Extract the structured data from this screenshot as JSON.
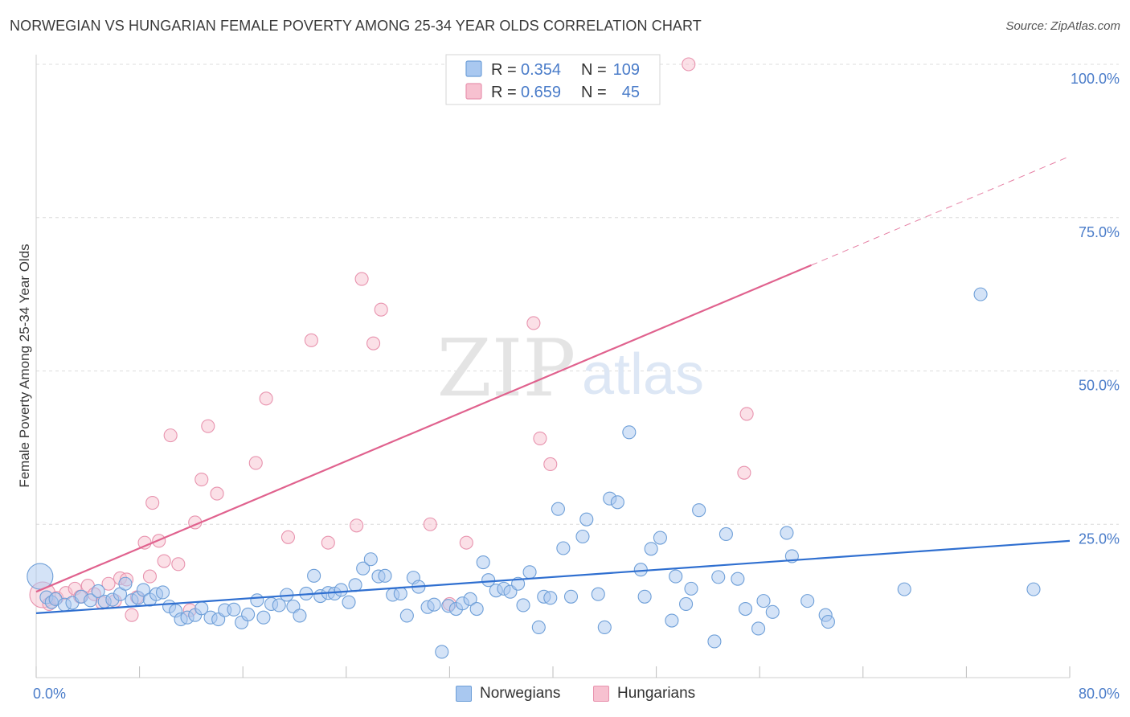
{
  "title": "NORWEGIAN VS HUNGARIAN FEMALE POVERTY AMONG 25-34 YEAR OLDS CORRELATION CHART",
  "source": "Source: ZipAtlas.com",
  "watermark": {
    "zip": "ZIP",
    "atlas": "atlas"
  },
  "colors": {
    "blue_fill": "#a9c8f0",
    "blue_stroke": "#6e9fd8",
    "blue_line": "#2f6fd0",
    "pink_fill": "#f7c1d0",
    "pink_stroke": "#e893ae",
    "pink_line": "#e0628e",
    "tick_text": "#4a7cc9",
    "grid": "#dcdcdc"
  },
  "legend": {
    "rows": [
      {
        "r_label": "R = ",
        "r_value": "0.354",
        "n_label": "N = ",
        "n_value": "109",
        "series": "blue"
      },
      {
        "r_label": "R = ",
        "r_value": "0.659",
        "n_label": "N = ",
        "n_value": "45",
        "series": "pink"
      }
    ]
  },
  "bottom_legend": [
    {
      "label": "Norwegians",
      "series": "blue"
    },
    {
      "label": "Hungarians",
      "series": "pink"
    }
  ],
  "chart_data": {
    "type": "scatter",
    "title": "NORWEGIAN VS HUNGARIAN FEMALE POVERTY AMONG 25-34 YEAR OLDS CORRELATION CHART",
    "xlabel": "",
    "ylabel": "Female Poverty Among 25-34 Year Olds",
    "xlim": [
      0,
      80
    ],
    "ylim": [
      0,
      100
    ],
    "x_tick_labels": [
      "0.0%",
      "80.0%"
    ],
    "y_tick_values": [
      25,
      50,
      75,
      100
    ],
    "y_tick_labels": [
      "25.0%",
      "50.0%",
      "75.0%",
      "100.0%"
    ],
    "grid": true,
    "legend_position": "top-center",
    "series": [
      {
        "name": "Norwegians",
        "color": "#a9c8f0",
        "trend": {
          "x": [
            0,
            80
          ],
          "y": [
            10.5,
            22.3
          ],
          "dashed_from": null
        },
        "points": [
          [
            0.3,
            16.5,
            "big"
          ],
          [
            0.8,
            13.1
          ],
          [
            1.2,
            12.3
          ],
          [
            1.5,
            12.8
          ],
          [
            2.2,
            11.9
          ],
          [
            2.8,
            12.2
          ],
          [
            3.5,
            13.2
          ],
          [
            4.2,
            12.6
          ],
          [
            4.8,
            14.1
          ],
          [
            5.3,
            12.4
          ],
          [
            5.9,
            12.7
          ],
          [
            6.5,
            13.6
          ],
          [
            6.9,
            15.3
          ],
          [
            7.4,
            12.6
          ],
          [
            7.9,
            13.0
          ],
          [
            8.3,
            14.3
          ],
          [
            8.8,
            12.7
          ],
          [
            9.3,
            13.6
          ],
          [
            9.8,
            13.9
          ],
          [
            10.3,
            11.6
          ],
          [
            10.8,
            10.9
          ],
          [
            11.2,
            9.5
          ],
          [
            11.7,
            9.8
          ],
          [
            12.3,
            10.2
          ],
          [
            12.8,
            11.3
          ],
          [
            13.5,
            9.8
          ],
          [
            14.1,
            9.5
          ],
          [
            14.6,
            11.0
          ],
          [
            15.3,
            11.1
          ],
          [
            15.9,
            9.0
          ],
          [
            16.4,
            10.3
          ],
          [
            17.1,
            12.6
          ],
          [
            17.6,
            9.8
          ],
          [
            18.2,
            12.0
          ],
          [
            18.8,
            11.8
          ],
          [
            19.4,
            13.5
          ],
          [
            19.9,
            11.6
          ],
          [
            20.4,
            10.1
          ],
          [
            20.9,
            13.7
          ],
          [
            21.5,
            16.6
          ],
          [
            22.0,
            13.3
          ],
          [
            22.6,
            13.8
          ],
          [
            23.1,
            13.7
          ],
          [
            23.6,
            14.3
          ],
          [
            24.2,
            12.3
          ],
          [
            24.7,
            15.1
          ],
          [
            25.3,
            17.8
          ],
          [
            25.9,
            19.3
          ],
          [
            26.5,
            16.5
          ],
          [
            27.0,
            16.6
          ],
          [
            27.6,
            13.5
          ],
          [
            28.2,
            13.7
          ],
          [
            28.7,
            10.1
          ],
          [
            29.2,
            16.3
          ],
          [
            29.6,
            14.8
          ],
          [
            30.3,
            11.5
          ],
          [
            30.8,
            11.9
          ],
          [
            31.4,
            4.2
          ],
          [
            31.9,
            11.7
          ],
          [
            32.5,
            11.2
          ],
          [
            33.0,
            12.1
          ],
          [
            33.6,
            12.8
          ],
          [
            34.1,
            11.2
          ],
          [
            34.6,
            18.8
          ],
          [
            35.0,
            15.9
          ],
          [
            35.6,
            14.2
          ],
          [
            36.2,
            14.5
          ],
          [
            36.7,
            14.0
          ],
          [
            37.3,
            15.3
          ],
          [
            37.7,
            11.8
          ],
          [
            38.2,
            17.2
          ],
          [
            38.9,
            8.2
          ],
          [
            39.3,
            13.2
          ],
          [
            39.8,
            13.0
          ],
          [
            40.4,
            27.5
          ],
          [
            40.8,
            21.1
          ],
          [
            41.4,
            13.2
          ],
          [
            42.3,
            23.0
          ],
          [
            42.6,
            25.8
          ],
          [
            43.5,
            13.6
          ],
          [
            44.0,
            8.2
          ],
          [
            44.4,
            29.2
          ],
          [
            45.0,
            28.6
          ],
          [
            45.9,
            40.0
          ],
          [
            46.8,
            17.6
          ],
          [
            47.1,
            13.2
          ],
          [
            47.6,
            21.0
          ],
          [
            48.3,
            22.8
          ],
          [
            49.2,
            9.3
          ],
          [
            49.5,
            16.5
          ],
          [
            50.3,
            12.0
          ],
          [
            50.7,
            14.5
          ],
          [
            51.3,
            27.3
          ],
          [
            52.5,
            5.9
          ],
          [
            52.8,
            16.4
          ],
          [
            53.4,
            23.4
          ],
          [
            54.3,
            16.1
          ],
          [
            54.9,
            11.2
          ],
          [
            55.9,
            8.0
          ],
          [
            56.3,
            12.5
          ],
          [
            57.0,
            10.7
          ],
          [
            58.1,
            23.6
          ],
          [
            58.5,
            19.8
          ],
          [
            59.7,
            12.5
          ],
          [
            61.1,
            10.2
          ],
          [
            61.3,
            9.1
          ],
          [
            67.2,
            14.4
          ],
          [
            73.1,
            62.5
          ],
          [
            77.2,
            14.4
          ]
        ]
      },
      {
        "name": "Hungarians",
        "color": "#f7c1d0",
        "trend": {
          "x": [
            0,
            80
          ],
          "y": [
            14.0,
            85.0
          ],
          "dashed_from": 60
        },
        "points": [
          [
            0.5,
            13.5,
            "big"
          ],
          [
            1.0,
            12.0
          ],
          [
            1.6,
            13.0
          ],
          [
            2.3,
            13.8
          ],
          [
            3.0,
            14.5
          ],
          [
            3.4,
            13.2
          ],
          [
            4.0,
            15.0
          ],
          [
            4.5,
            13.6
          ],
          [
            5.1,
            12.2
          ],
          [
            5.6,
            15.3
          ],
          [
            6.1,
            12.5
          ],
          [
            6.5,
            16.2
          ],
          [
            7.0,
            16.0
          ],
          [
            7.4,
            10.2
          ],
          [
            7.8,
            13.1
          ],
          [
            8.4,
            22.0
          ],
          [
            8.8,
            16.5
          ],
          [
            9.0,
            28.5
          ],
          [
            9.5,
            22.3
          ],
          [
            9.9,
            19.0
          ],
          [
            10.4,
            39.5
          ],
          [
            11.0,
            18.5
          ],
          [
            11.9,
            11.0
          ],
          [
            12.3,
            25.3
          ],
          [
            12.8,
            32.3
          ],
          [
            13.3,
            41.0
          ],
          [
            14.0,
            30.0
          ],
          [
            17.0,
            35.0
          ],
          [
            17.8,
            45.5
          ],
          [
            19.5,
            22.9
          ],
          [
            21.3,
            55.0
          ],
          [
            22.6,
            22.0
          ],
          [
            24.8,
            24.8
          ],
          [
            25.2,
            65.0
          ],
          [
            26.1,
            54.5
          ],
          [
            26.7,
            60.0
          ],
          [
            30.5,
            25.0
          ],
          [
            32.0,
            12.0
          ],
          [
            33.3,
            22.0
          ],
          [
            38.5,
            57.8
          ],
          [
            39.0,
            39.0
          ],
          [
            39.8,
            34.8
          ],
          [
            50.5,
            100.0
          ],
          [
            54.8,
            33.4
          ],
          [
            55.0,
            43.0
          ]
        ]
      }
    ]
  }
}
